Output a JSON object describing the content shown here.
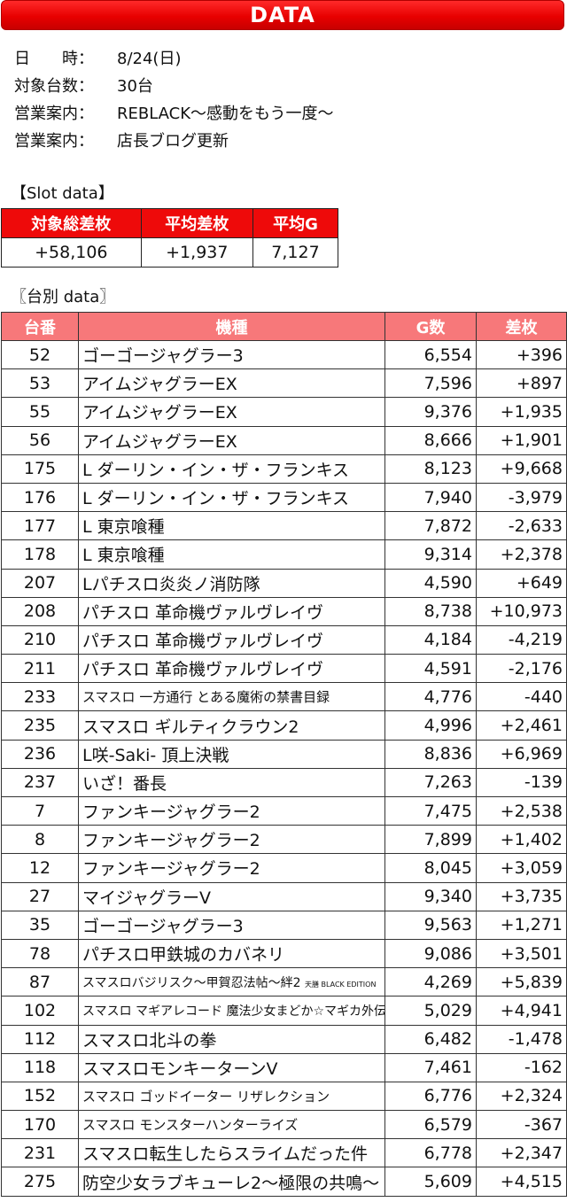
{
  "header": {
    "title": "DATA"
  },
  "info": [
    {
      "label": "日　　時：",
      "value": "8/24(日)"
    },
    {
      "label": "対象台数：",
      "value": "30台"
    },
    {
      "label": "営業案内：",
      "value": "REBLACK〜感動をもう一度〜"
    },
    {
      "label": "営業案内：",
      "value": "店長ブログ更新"
    }
  ],
  "slot_section": {
    "label": "【Slot data】",
    "headers": [
      "対象総差枚",
      "平均差枚",
      "平均G"
    ],
    "values": [
      "+58,106",
      "+1,937",
      "7,127"
    ]
  },
  "unit_section": {
    "label": "〖台別 data〗",
    "headers": [
      "台番",
      "機種",
      "G数",
      "差枚"
    ],
    "rows": [
      {
        "no": "52",
        "name": "ゴーゴージャグラー3",
        "g": "6,554",
        "diff": "+396"
      },
      {
        "no": "53",
        "name": "アイムジャグラーEX",
        "g": "7,596",
        "diff": "+897"
      },
      {
        "no": "55",
        "name": "アイムジャグラーEX",
        "g": "9,376",
        "diff": "+1,935"
      },
      {
        "no": "56",
        "name": "アイムジャグラーEX",
        "g": "8,666",
        "diff": "+1,901"
      },
      {
        "no": "175",
        "name": "L ダーリン・イン・ザ・フランキス",
        "g": "8,123",
        "diff": "+9,668"
      },
      {
        "no": "176",
        "name": "L ダーリン・イン・ザ・フランキス",
        "g": "7,940",
        "diff": "-3,979"
      },
      {
        "no": "177",
        "name": "L 東京喰種",
        "g": "7,872",
        "diff": "-2,633"
      },
      {
        "no": "178",
        "name": "L 東京喰種",
        "g": "9,314",
        "diff": "+2,378"
      },
      {
        "no": "207",
        "name": "Lパチスロ炎炎ノ消防隊",
        "g": "4,590",
        "diff": "+649"
      },
      {
        "no": "208",
        "name": "パチスロ 革命機ヴァルヴレイヴ",
        "g": "8,738",
        "diff": "+10,973"
      },
      {
        "no": "210",
        "name": "パチスロ 革命機ヴァルヴレイヴ",
        "g": "4,184",
        "diff": "-4,219"
      },
      {
        "no": "211",
        "name": "パチスロ 革命機ヴァルヴレイヴ",
        "g": "4,591",
        "diff": "-2,176"
      },
      {
        "no": "233",
        "name": "スマスロ 一方通行 とある魔術の禁書目録",
        "g": "4,776",
        "diff": "-440"
      },
      {
        "no": "235",
        "name": "スマスロ ギルティクラウン2",
        "g": "4,996",
        "diff": "+2,461"
      },
      {
        "no": "236",
        "name": "L咲-Saki- 頂上決戦",
        "g": "8,836",
        "diff": "+6,969"
      },
      {
        "no": "237",
        "name": "いざ！番長",
        "g": "7,263",
        "diff": "-139"
      },
      {
        "no": "7",
        "name": "ファンキージャグラー2",
        "g": "7,475",
        "diff": "+2,538"
      },
      {
        "no": "8",
        "name": "ファンキージャグラー2",
        "g": "7,899",
        "diff": "+1,402"
      },
      {
        "no": "12",
        "name": "ファンキージャグラー2",
        "g": "8,045",
        "diff": "+3,059"
      },
      {
        "no": "27",
        "name": "マイジャグラーⅤ",
        "g": "9,340",
        "diff": "+3,735"
      },
      {
        "no": "35",
        "name": "ゴーゴージャグラー3",
        "g": "9,563",
        "diff": "+1,271"
      },
      {
        "no": "78",
        "name": "パチスロ甲鉄城のカバネリ",
        "g": "9,086",
        "diff": "+3,501"
      },
      {
        "no": "87",
        "name": "スマスロバジリスク〜甲賀忍法帖〜絆2",
        "name_suffix": "天膳 BLACK EDITION",
        "g": "4,269",
        "diff": "+5,839"
      },
      {
        "no": "102",
        "name": "スマスロ マギアレコード 魔法少女まどか☆マギカ外伝",
        "g": "5,029",
        "diff": "+4,941"
      },
      {
        "no": "112",
        "name": "スマスロ北斗の拳",
        "g": "6,482",
        "diff": "-1,478"
      },
      {
        "no": "118",
        "name": "スマスロモンキーターンⅤ",
        "g": "7,461",
        "diff": "-162"
      },
      {
        "no": "152",
        "name": "スマスロ ゴッドイーター リザレクション",
        "g": "6,776",
        "diff": "+2,324"
      },
      {
        "no": "170",
        "name": "スマスロ モンスターハンターライズ",
        "g": "6,579",
        "diff": "-367"
      },
      {
        "no": "231",
        "name": "スマスロ転生したらスライムだった件",
        "g": "6,778",
        "diff": "+2,347"
      },
      {
        "no": "275",
        "name": "防空少女ラブキューレ2〜極限の共鳴〜",
        "g": "5,609",
        "diff": "+4,515"
      }
    ]
  },
  "colors": {
    "banner": "#e80000",
    "summary_header": "#ee0a0a",
    "unit_header": "#f7787a"
  }
}
